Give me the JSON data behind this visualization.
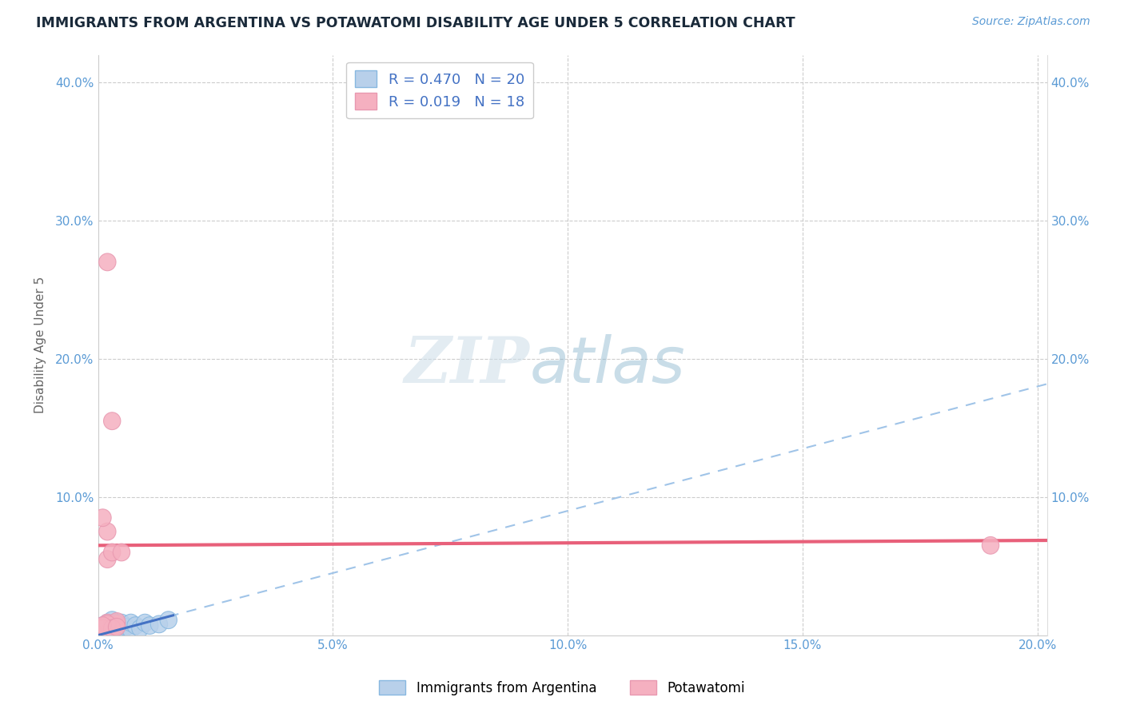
{
  "title": "IMMIGRANTS FROM ARGENTINA VS POTAWATOMI DISABILITY AGE UNDER 5 CORRELATION CHART",
  "source": "Source: ZipAtlas.com",
  "ylabel_label": "Disability Age Under 5",
  "legend_label1": "Immigrants from Argentina",
  "legend_label2": "Potawatomi",
  "r1": 0.47,
  "n1": 20,
  "r2": 0.019,
  "n2": 18,
  "xlim": [
    0.0,
    0.202
  ],
  "ylim": [
    0.0,
    0.42
  ],
  "xticks": [
    0.0,
    0.05,
    0.1,
    0.15,
    0.2
  ],
  "yticks": [
    0.0,
    0.1,
    0.2,
    0.3,
    0.4
  ],
  "color_blue": "#b8d0ea",
  "color_pink": "#f5b0c0",
  "color_blue_trendline": "#a0c4e8",
  "color_pink_trendline": "#e8607a",
  "color_blue_dense": "#4472c4",
  "blue_x": [
    0.001,
    0.001,
    0.002,
    0.002,
    0.003,
    0.003,
    0.003,
    0.004,
    0.004,
    0.005,
    0.005,
    0.006,
    0.007,
    0.007,
    0.008,
    0.009,
    0.01,
    0.011,
    0.013,
    0.015
  ],
  "blue_y": [
    0.004,
    0.007,
    0.005,
    0.009,
    0.004,
    0.007,
    0.011,
    0.005,
    0.009,
    0.005,
    0.009,
    0.006,
    0.004,
    0.009,
    0.007,
    0.005,
    0.009,
    0.007,
    0.008,
    0.011
  ],
  "pink_x": [
    0.001,
    0.002,
    0.002,
    0.003,
    0.004,
    0.005,
    0.002,
    0.002,
    0.003,
    0.003,
    0.004,
    0.001,
    0.002,
    0.19,
    0.001,
    0.003,
    0.001,
    0.004
  ],
  "pink_y": [
    0.006,
    0.075,
    0.055,
    0.06,
    0.008,
    0.06,
    0.009,
    0.27,
    0.155,
    0.007,
    0.01,
    0.085,
    0.008,
    0.065,
    0.005,
    0.005,
    0.007,
    0.006
  ]
}
